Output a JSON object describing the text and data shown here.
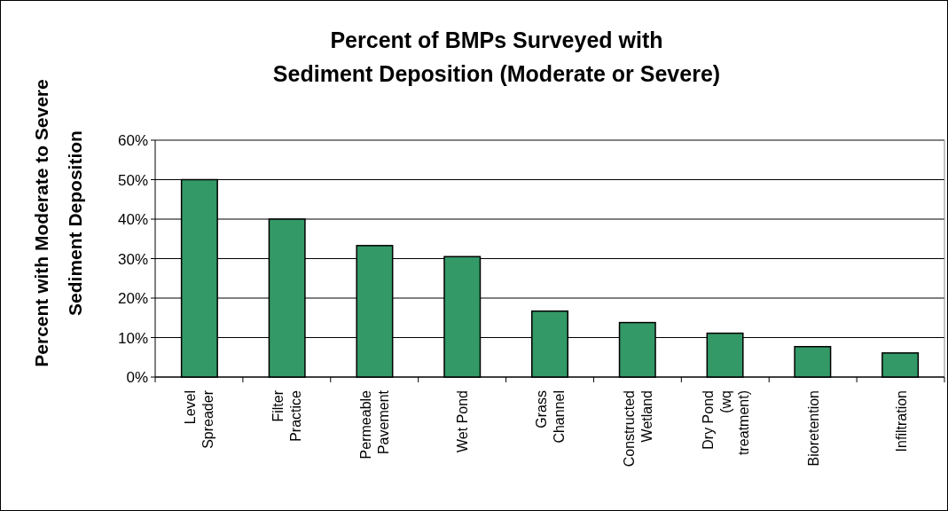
{
  "chart_data": {
    "type": "bar",
    "title": "Percent of BMPs Surveyed with\nSediment Deposition (Moderate or Severe)",
    "ylabel": "Percent with Moderate to Severe\nSediment Deposition",
    "categories": [
      "Level Spreader",
      "Filter Practice",
      "Permeable Pavement",
      "Wet Pond",
      "Grass Channel",
      "Constructed Wetland",
      "Dry Pond (wq treatment)",
      "Bioretention",
      "Infiltration"
    ],
    "values": [
      50,
      40,
      33.3,
      30.5,
      16.7,
      13.8,
      11.1,
      7.7,
      6.1
    ],
    "color": "#339966",
    "ylim": [
      0,
      60
    ],
    "yticks": [
      {
        "value": 0,
        "label": "0%"
      },
      {
        "value": 10,
        "label": "10%"
      },
      {
        "value": 20,
        "label": "20%"
      },
      {
        "value": 30,
        "label": "30%"
      },
      {
        "value": 40,
        "label": "40%"
      },
      {
        "value": 50,
        "label": "50%"
      },
      {
        "value": 60,
        "label": "60%"
      }
    ],
    "grid": "y"
  }
}
